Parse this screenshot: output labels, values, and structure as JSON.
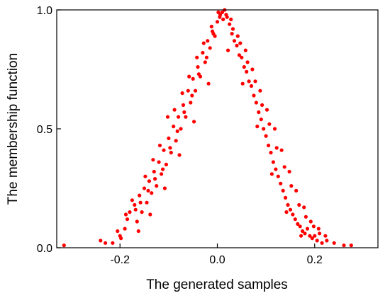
{
  "chart_data": {
    "type": "scatter",
    "title": "",
    "xlabel": "The generated samples",
    "ylabel": "The membership function",
    "xlim": [
      -0.33,
      0.33
    ],
    "ylim": [
      0.0,
      1.0
    ],
    "x_ticks": [
      -0.2,
      0.0,
      0.2
    ],
    "x_tick_labels": [
      "-0.2",
      "0.0",
      "0.2"
    ],
    "y_ticks": [
      0.0,
      0.5,
      1.0
    ],
    "y_tick_labels": [
      "0.0",
      "0.5",
      "1.0"
    ],
    "grid": false,
    "legend": "none",
    "marker_color": "#ff0000",
    "series": [
      {
        "points": [
          [
            -0.315,
            0.01
          ],
          [
            -0.24,
            0.03
          ],
          [
            -0.23,
            0.02
          ],
          [
            -0.215,
            0.02
          ],
          [
            -0.2,
            0.05
          ],
          [
            -0.19,
            0.08
          ],
          [
            -0.185,
            0.12
          ],
          [
            -0.18,
            0.15
          ],
          [
            -0.17,
            0.18
          ],
          [
            -0.165,
            0.11
          ],
          [
            -0.16,
            0.22
          ],
          [
            -0.155,
            0.15
          ],
          [
            -0.15,
            0.25
          ],
          [
            -0.145,
            0.19
          ],
          [
            -0.14,
            0.28
          ],
          [
            -0.135,
            0.23
          ],
          [
            -0.13,
            0.32
          ],
          [
            -0.125,
            0.26
          ],
          [
            -0.12,
            0.36
          ],
          [
            -0.115,
            0.31
          ],
          [
            -0.11,
            0.41
          ],
          [
            -0.105,
            0.35
          ],
          [
            -0.1,
            0.46
          ],
          [
            -0.095,
            0.4
          ],
          [
            -0.09,
            0.51
          ],
          [
            -0.085,
            0.45
          ],
          [
            -0.08,
            0.55
          ],
          [
            -0.075,
            0.5
          ],
          [
            -0.07,
            0.6
          ],
          [
            -0.065,
            0.55
          ],
          [
            -0.06,
            0.66
          ],
          [
            -0.055,
            0.61
          ],
          [
            -0.05,
            0.71
          ],
          [
            -0.045,
            0.66
          ],
          [
            -0.04,
            0.76
          ],
          [
            -0.035,
            0.72
          ],
          [
            -0.03,
            0.82
          ],
          [
            -0.025,
            0.78
          ],
          [
            -0.02,
            0.87
          ],
          [
            -0.015,
            0.84
          ],
          [
            -0.01,
            0.91
          ],
          [
            -0.005,
            0.89
          ],
          [
            0.0,
            0.95
          ],
          [
            0.005,
            0.97
          ],
          [
            0.01,
            0.99
          ],
          [
            0.015,
            1.0
          ],
          [
            0.02,
            0.97
          ],
          [
            0.025,
            0.94
          ],
          [
            0.03,
            0.9
          ],
          [
            0.035,
            0.87
          ],
          [
            0.04,
            0.85
          ],
          [
            0.045,
            0.81
          ],
          [
            0.05,
            0.8
          ],
          [
            0.055,
            0.76
          ],
          [
            0.06,
            0.74
          ],
          [
            0.065,
            0.7
          ],
          [
            0.07,
            0.68
          ],
          [
            0.075,
            0.64
          ],
          [
            0.08,
            0.61
          ],
          [
            0.085,
            0.57
          ],
          [
            0.09,
            0.54
          ],
          [
            0.095,
            0.5
          ],
          [
            0.1,
            0.47
          ],
          [
            0.105,
            0.43
          ],
          [
            0.11,
            0.4
          ],
          [
            0.115,
            0.36
          ],
          [
            0.12,
            0.33
          ],
          [
            0.125,
            0.3
          ],
          [
            0.13,
            0.27
          ],
          [
            0.135,
            0.24
          ],
          [
            0.14,
            0.21
          ],
          [
            0.145,
            0.18
          ],
          [
            0.15,
            0.16
          ],
          [
            0.155,
            0.14
          ],
          [
            0.16,
            0.12
          ],
          [
            0.165,
            0.1
          ],
          [
            0.17,
            0.09
          ],
          [
            0.175,
            0.07
          ],
          [
            0.18,
            0.06
          ],
          [
            0.185,
            0.08
          ],
          [
            0.19,
            0.05
          ],
          [
            0.195,
            0.04
          ],
          [
            0.2,
            0.05
          ],
          [
            0.205,
            0.03
          ],
          [
            0.21,
            0.06
          ],
          [
            0.215,
            0.02
          ],
          [
            0.225,
            0.03
          ],
          [
            0.24,
            0.02
          ],
          [
            0.26,
            0.01
          ],
          [
            0.275,
            0.01
          ],
          [
            -0.175,
            0.2
          ],
          [
            -0.158,
            0.19
          ],
          [
            -0.142,
            0.24
          ],
          [
            -0.128,
            0.29
          ],
          [
            -0.112,
            0.33
          ],
          [
            -0.097,
            0.42
          ],
          [
            -0.082,
            0.49
          ],
          [
            -0.068,
            0.57
          ],
          [
            -0.052,
            0.64
          ],
          [
            -0.038,
            0.73
          ],
          [
            -0.022,
            0.8
          ],
          [
            -0.008,
            0.9
          ],
          [
            0.006,
            0.98
          ],
          [
            0.018,
            0.98
          ],
          [
            0.032,
            0.92
          ],
          [
            0.047,
            0.86
          ],
          [
            0.062,
            0.78
          ],
          [
            0.078,
            0.7
          ],
          [
            0.092,
            0.6
          ],
          [
            0.107,
            0.52
          ],
          [
            0.122,
            0.42
          ],
          [
            0.138,
            0.34
          ],
          [
            0.152,
            0.26
          ],
          [
            0.168,
            0.18
          ],
          [
            0.182,
            0.13
          ],
          [
            0.198,
            0.09
          ],
          [
            -0.205,
            0.07
          ],
          [
            -0.198,
            0.04
          ],
          [
            -0.188,
            0.14
          ],
          [
            -0.168,
            0.16
          ],
          [
            -0.148,
            0.3
          ],
          [
            -0.132,
            0.37
          ],
          [
            -0.118,
            0.43
          ],
          [
            -0.102,
            0.55
          ],
          [
            -0.088,
            0.58
          ],
          [
            -0.072,
            0.65
          ],
          [
            -0.058,
            0.72
          ],
          [
            -0.042,
            0.8
          ],
          [
            -0.028,
            0.86
          ],
          [
            -0.012,
            0.93
          ],
          [
            0.002,
            0.99
          ],
          [
            0.012,
            0.96
          ],
          [
            0.028,
            0.96
          ],
          [
            0.042,
            0.89
          ],
          [
            0.058,
            0.83
          ],
          [
            0.072,
            0.75
          ],
          [
            0.088,
            0.66
          ],
          [
            0.102,
            0.58
          ],
          [
            0.118,
            0.5
          ],
          [
            0.132,
            0.41
          ],
          [
            0.148,
            0.32
          ],
          [
            0.162,
            0.24
          ],
          [
            0.178,
            0.17
          ],
          [
            0.192,
            0.11
          ],
          [
            0.208,
            0.08
          ],
          [
            0.222,
            0.05
          ],
          [
            -0.162,
            0.07
          ],
          [
            -0.138,
            0.14
          ],
          [
            -0.108,
            0.25
          ],
          [
            -0.078,
            0.39
          ],
          [
            -0.048,
            0.53
          ],
          [
            -0.018,
            0.69
          ],
          [
            0.022,
            0.83
          ],
          [
            0.052,
            0.69
          ],
          [
            0.082,
            0.51
          ],
          [
            0.112,
            0.31
          ],
          [
            0.142,
            0.15
          ],
          [
            0.172,
            0.05
          ]
        ]
      }
    ]
  }
}
